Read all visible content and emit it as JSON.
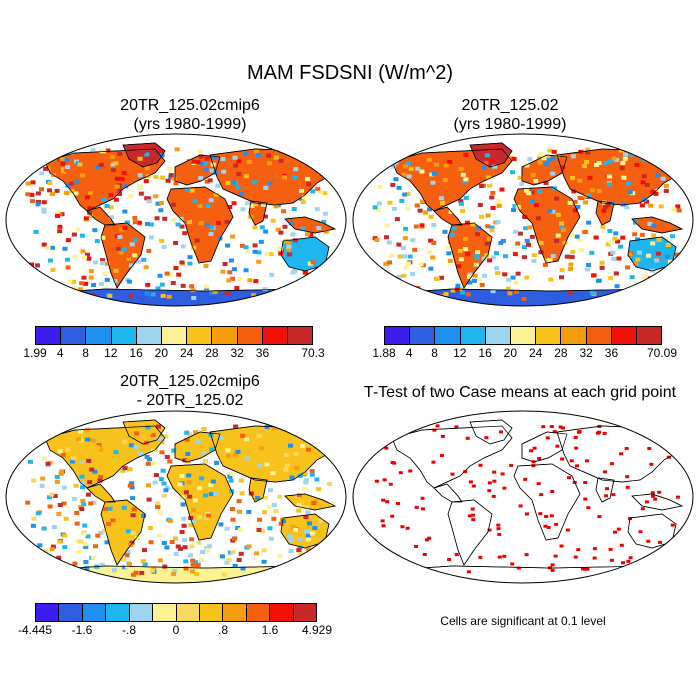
{
  "title": "MAM FSDSNI (W/m^2)",
  "panels": {
    "top_left": {
      "title_line1": "20TR_125.02cmip6",
      "title_line2": "(yrs 1980-1999)"
    },
    "top_right": {
      "title_line1": "20TR_125.02",
      "title_line2": "(yrs 1980-1999)"
    },
    "bottom_left": {
      "title_line1": "20TR_125.02cmip6",
      "title_line2": "- 20TR_125.02"
    },
    "bottom_right": {
      "title_line1": "T-Test of two Case means at each grid point",
      "note": "Cells are significant at 0.1 level"
    }
  },
  "colorbars": {
    "top_left": {
      "colors": [
        "#3b1df0",
        "#2f5de0",
        "#1f8ff0",
        "#1fb6f0",
        "#9fd4ee",
        "#fbf393",
        "#f8c21c",
        "#f59c0f",
        "#f56010",
        "#f01008",
        "#c8282c"
      ],
      "labels": [
        "1.99",
        "4",
        "8",
        "12",
        "16",
        "20",
        "24",
        "28",
        "32",
        "36",
        "70.3"
      ]
    },
    "top_right": {
      "colors": [
        "#3b1df0",
        "#2f5de0",
        "#1f8ff0",
        "#1fb6f0",
        "#9fd4ee",
        "#fbf393",
        "#f8c21c",
        "#f59c0f",
        "#f56010",
        "#f01008",
        "#c8282c"
      ],
      "labels": [
        "1.88",
        "4",
        "8",
        "12",
        "16",
        "20",
        "24",
        "28",
        "32",
        "36",
        "70.09"
      ]
    },
    "bottom_left": {
      "colors": [
        "#3b1df0",
        "#2f5de0",
        "#1f8ff0",
        "#1fb6f0",
        "#9fd4ee",
        "#fbf393",
        "#f8d860",
        "#f8c21c",
        "#f59c0f",
        "#f56010",
        "#f01008",
        "#c8282c"
      ],
      "labels": [
        "-4.445",
        "-1.6",
        "-.8",
        "0",
        ".8",
        "1.6",
        "4.929"
      ]
    }
  },
  "colors": {
    "land_high": "#d7301f",
    "land_mid": "#f59c0f",
    "ocean": "#ffffff",
    "significant": "#ee0000"
  }
}
